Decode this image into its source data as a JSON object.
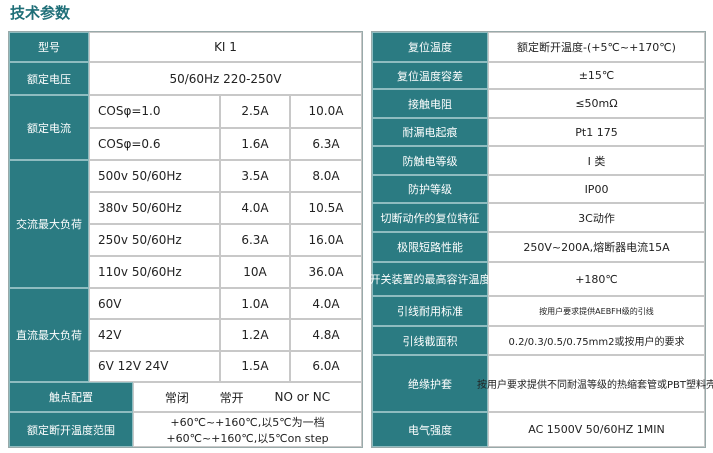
{
  "title": "技术参数",
  "left_table": {
    "model": {
      "label": "型号",
      "value": "KI 1"
    },
    "voltage": {
      "label": "额定电压",
      "value": "50/60Hz   220-250V"
    },
    "current": {
      "label": "额定电流",
      "rows": [
        [
          "COSφ=1.0",
          "2.5A",
          "10.0A"
        ],
        [
          "COSφ=0.6",
          "1.6A",
          "6.3A"
        ]
      ]
    },
    "ac_load": {
      "label": "交流最大负荷",
      "rows": [
        [
          "500v 50/60Hz",
          "3.5A",
          "8.0A"
        ],
        [
          "380v 50/60Hz",
          "4.0A",
          "10.5A"
        ],
        [
          "250v 50/60Hz",
          "6.3A",
          "16.0A"
        ],
        [
          "110v 50/60Hz",
          "10A",
          "36.0A"
        ]
      ]
    },
    "dc_load": {
      "label": "直流最大负荷",
      "rows": [
        [
          "60V",
          "1.0A",
          "4.0A"
        ],
        [
          "42V",
          "1.2A",
          "4.8A"
        ],
        [
          "6V 12V 24V",
          "1.5A",
          "6.0A"
        ]
      ]
    },
    "contacts": {
      "label": "触点配置",
      "values": [
        "常闭",
        "常开",
        "NO or NC"
      ]
    },
    "temp_range": {
      "label": "额定断开温度范围",
      "lines": [
        "+60℃~+160℃,以5℃为一档",
        "+60℃~+160℃,以5℃on step"
      ]
    }
  },
  "right_table": {
    "rows": [
      {
        "label": "复位温度",
        "value": "额定断开温度-(+5℃~+170℃)"
      },
      {
        "label": "复位温度容差",
        "value": "±15℃"
      },
      {
        "label": "接触电阻",
        "value": "≤50mΩ"
      },
      {
        "label": "耐漏电起痕",
        "value": "Pt1 175"
      },
      {
        "label": "防触电等级",
        "value": "I 类"
      },
      {
        "label": "防护等级",
        "value": "IP00"
      },
      {
        "label": "切断动作的复位特征",
        "value": "3C动作"
      },
      {
        "label": "极限短路性能",
        "value": "250V~200A,熔断器电流15A"
      },
      {
        "label": "开关装置的最高容许温度",
        "value": "+180℃"
      },
      {
        "label": "引线耐用标准",
        "value": "按用户要求提供AEBFH级的引线"
      },
      {
        "label": "引线截面积",
        "value": "0.2/0.3/0.5/0.75mm2或按用户的要求"
      },
      {
        "label": "绝缘护套",
        "value": "按用户要求提供不同耐温等级的热缩套管或PBT塑料壳"
      },
      {
        "label": "电气强度",
        "value": "AC 1500V 50/60HZ 1MIN"
      }
    ]
  }
}
